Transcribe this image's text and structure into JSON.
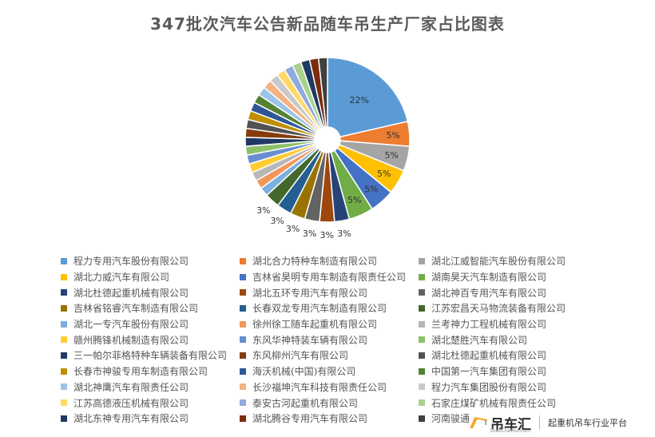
{
  "title": "347批次汽车公告新品随车吊生产厂家占比图表",
  "chart_data": {
    "type": "pie",
    "title": "347批次汽车公告新品随车吊生产厂家占比图表",
    "legend_placement": "bottom",
    "slices": [
      {
        "name": "程力专用汽车股份有限公司",
        "value": 22,
        "label": "22%",
        "color": "#5B9BD5"
      },
      {
        "name": "湖北合力特种车制造有限公司",
        "value": 5,
        "label": "5%",
        "color": "#ED7D31"
      },
      {
        "name": "湖北江威智能汽车股份有限公司",
        "value": 5,
        "label": "5%",
        "color": "#A5A5A5"
      },
      {
        "name": "湖北力威汽车有限公司",
        "value": 5,
        "label": "5%",
        "color": "#FFC000"
      },
      {
        "name": "吉林省昊明专用车制造有限责任公司",
        "value": 5,
        "label": "5%",
        "color": "#4472C4"
      },
      {
        "name": "湖南昊天汽车制造有限公司",
        "value": 5,
        "label": "5%",
        "color": "#70AD47"
      },
      {
        "name": "湖北杜德起重机械有限公司",
        "value": 3,
        "label": "3%",
        "color": "#264478"
      },
      {
        "name": "湖北五环专用汽车有限公司",
        "value": 3,
        "label": "3%",
        "color": "#9E480E"
      },
      {
        "name": "湖北神百专用汽车有限公司",
        "value": 3,
        "label": "3%",
        "color": "#636363"
      },
      {
        "name": "吉林省铭睿汽车制造有限公司",
        "value": 3,
        "label": "3%",
        "color": "#997300"
      },
      {
        "name": "长春双龙专用汽车制造有限公司",
        "value": 3,
        "label": "3%",
        "color": "#255E91"
      },
      {
        "name": "江苏宏昌天马物流装备有限公司",
        "value": 3,
        "label": "3%",
        "color": "#43682B"
      },
      {
        "name": "湖北一专汽车股份有限公司",
        "value": 1.8,
        "label": "",
        "color": "#7CAFDD"
      },
      {
        "name": "徐州徐工随车起重机有限公司",
        "value": 1.8,
        "label": "",
        "color": "#F1975A"
      },
      {
        "name": "兰考神力工程机械有限公司",
        "value": 1.8,
        "label": "",
        "color": "#B7B7B7"
      },
      {
        "name": "赣州腾锋机械制造有限公司",
        "value": 1.8,
        "label": "",
        "color": "#FFCD33"
      },
      {
        "name": "东风华神特装车辆有限公司",
        "value": 1.8,
        "label": "",
        "color": "#698ED0"
      },
      {
        "name": "湖北楚胜汽车有限公司",
        "value": 1.8,
        "label": "",
        "color": "#8CC168"
      },
      {
        "name": "三一帕尔菲格特种车辆装备有限公司",
        "value": 1.8,
        "label": "",
        "color": "#203864"
      },
      {
        "name": "东风柳州汽车有限公司",
        "value": 1.8,
        "label": "",
        "color": "#843C0C"
      },
      {
        "name": "湖北杜德起重机械有限公司",
        "value": 1.8,
        "label": "",
        "color": "#525252"
      },
      {
        "name": "长春市神骏专用车制造有限公司",
        "value": 1.8,
        "label": "",
        "color": "#BF8F00"
      },
      {
        "name": "海沃机械(中国)有限公司",
        "value": 1.8,
        "label": "",
        "color": "#2F5597"
      },
      {
        "name": "中国第一汽车集团有限公司",
        "value": 1.8,
        "label": "",
        "color": "#548235"
      },
      {
        "name": "湖北神鹰汽车有限责任公司",
        "value": 1.8,
        "label": "",
        "color": "#9DC3E6"
      },
      {
        "name": "长沙福坤汽车科技有限责任公司",
        "value": 1.8,
        "label": "",
        "color": "#F4B183"
      },
      {
        "name": "程力汽车集团股份有限公司",
        "value": 1.8,
        "label": "",
        "color": "#C9C9C9"
      },
      {
        "name": "江苏高德液压机械有限公司",
        "value": 1.8,
        "label": "",
        "color": "#FFD966"
      },
      {
        "name": "泰安古河起重机有限公司",
        "value": 1.8,
        "label": "",
        "color": "#8FAADC"
      },
      {
        "name": "石家庄煤矿机械有限责任公司",
        "value": 1.8,
        "label": "",
        "color": "#A9D18E"
      },
      {
        "name": "湖北东神专用汽车有限公司",
        "value": 1.8,
        "label": "",
        "color": "#1F3864"
      },
      {
        "name": "湖北腾谷专用汽车有限公司",
        "value": 1.8,
        "label": "",
        "color": "#7B2C0A"
      },
      {
        "name": "河南骏通",
        "value": 1.8,
        "label": "",
        "color": "#404040"
      }
    ]
  },
  "brand": {
    "name": "吊车汇",
    "url": "DiaoCheHui.com",
    "slogan": "起重机吊车行业平台"
  }
}
